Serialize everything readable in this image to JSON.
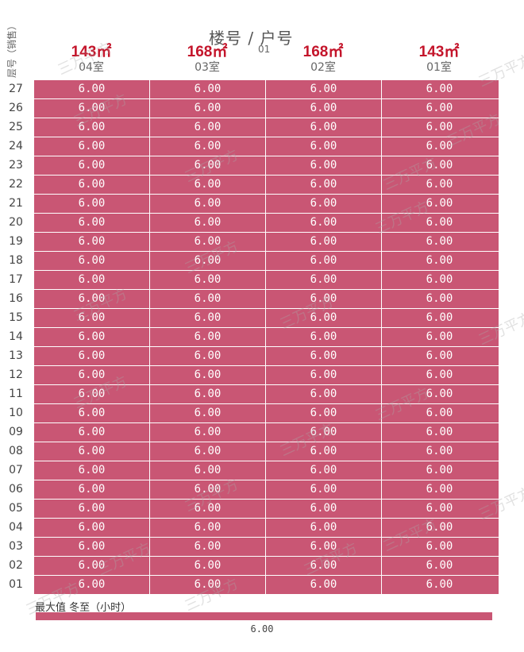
{
  "header": {
    "title": "楼号  /  户号",
    "building": "01",
    "floor_axis_label": "层号（销售）"
  },
  "units": [
    {
      "area": "143㎡",
      "room": "04室"
    },
    {
      "area": "168㎡",
      "room": "03室"
    },
    {
      "area": "168㎡",
      "room": "02室"
    },
    {
      "area": "143㎡",
      "room": "01室"
    }
  ],
  "floors": [
    "27",
    "26",
    "25",
    "24",
    "23",
    "22",
    "21",
    "20",
    "19",
    "18",
    "17",
    "16",
    "15",
    "14",
    "13",
    "12",
    "11",
    "10",
    "09",
    "08",
    "07",
    "06",
    "05",
    "04",
    "03",
    "02",
    "01"
  ],
  "cell_value": "6.00",
  "legend": {
    "title": "最大值  冬至（小时）",
    "value": "6.00"
  },
  "watermark_text": "三万平方",
  "colors": {
    "cell": "#c95674",
    "area_text": "#c4152b"
  }
}
